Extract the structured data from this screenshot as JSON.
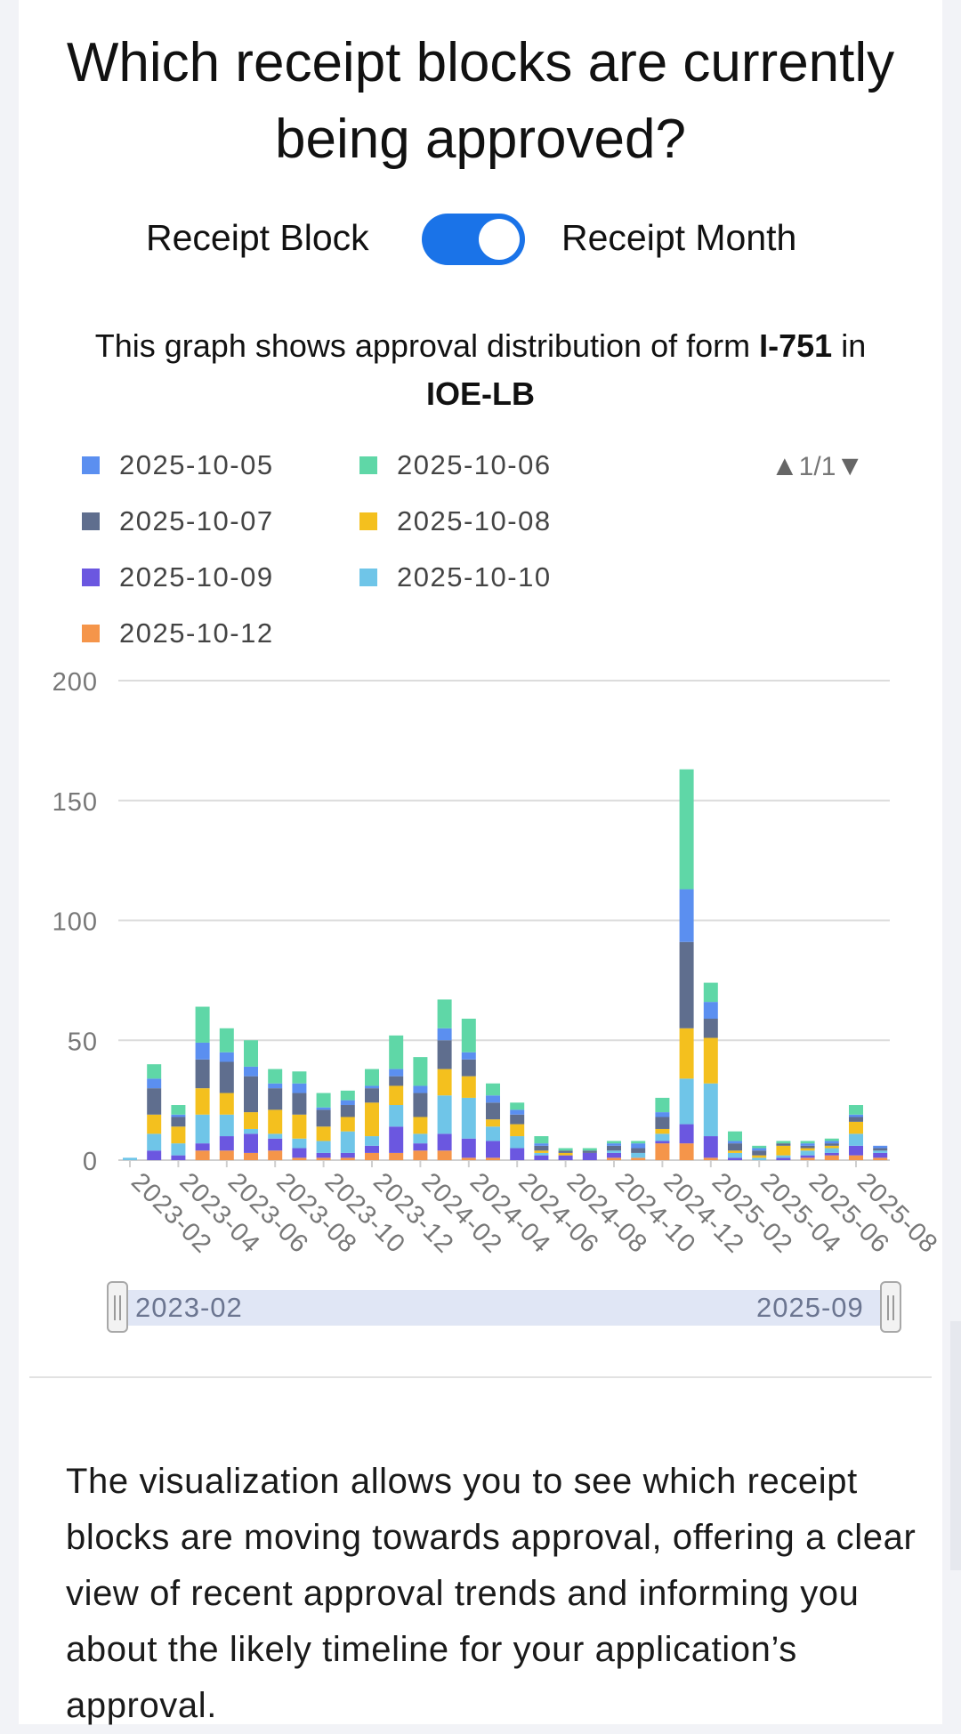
{
  "header": {
    "title": "Which receipt blocks are currently being approved?"
  },
  "toggle": {
    "left_label": "Receipt Block",
    "right_label": "Receipt Month",
    "checked": true,
    "color": "#1a73e8"
  },
  "subtitle": {
    "prefix": "This graph shows approval distribution of form",
    "form": "I-751",
    "mid": "in",
    "office": "IOE-LB"
  },
  "legend": {
    "pager": "1/1",
    "up_icon": "▲",
    "down_icon": "▼"
  },
  "slider": {
    "start_label": "2023-02",
    "end_label": "2025-09"
  },
  "description": {
    "text": "The visualization allows you to see which receipt blocks are moving towards approval, offering a clear view of recent approval trends and informing you about the likely timeline for your application’s approval."
  },
  "chart_data": {
    "type": "bar",
    "stacked": true,
    "legend_placement": "top",
    "grid": true,
    "ylim": [
      0,
      200
    ],
    "yticks": [
      0,
      50,
      100,
      150,
      200
    ],
    "categories": [
      "2023-02",
      "2023-03",
      "2023-04",
      "2023-05",
      "2023-06",
      "2023-07",
      "2023-08",
      "2023-09",
      "2023-10",
      "2023-11",
      "2023-12",
      "2024-01",
      "2024-02",
      "2024-03",
      "2024-04",
      "2024-05",
      "2024-06",
      "2024-07",
      "2024-08",
      "2024-09",
      "2024-10",
      "2024-11",
      "2024-12",
      "2025-01",
      "2025-02",
      "2025-03",
      "2025-04",
      "2025-05",
      "2025-06",
      "2025-07",
      "2025-08",
      "2025-09"
    ],
    "xtick_labels": [
      "2023-02",
      "2023-04",
      "2023-06",
      "2023-08",
      "2023-10",
      "2023-12",
      "2024-02",
      "2024-04",
      "2024-06",
      "2024-08",
      "2024-10",
      "2024-12",
      "2025-02",
      "2025-04",
      "2025-06",
      "2025-08"
    ],
    "series": [
      {
        "name": "2025-10-12",
        "color": "#f5954a",
        "values": [
          0,
          0,
          0,
          4,
          4,
          3,
          4,
          1,
          1,
          1,
          3,
          3,
          4,
          4,
          1,
          1,
          0,
          0,
          0,
          0,
          1,
          1,
          7,
          7,
          1,
          0,
          0,
          0,
          1,
          2,
          2,
          1
        ]
      },
      {
        "name": "2025-10-09",
        "color": "#6b57e0",
        "values": [
          0,
          4,
          2,
          3,
          6,
          8,
          5,
          4,
          2,
          2,
          3,
          11,
          3,
          7,
          8,
          7,
          5,
          2,
          2,
          3,
          2,
          0,
          1,
          8,
          9,
          1,
          0,
          1,
          1,
          1,
          4,
          2
        ]
      },
      {
        "name": "2025-10-10",
        "color": "#6fc5e8",
        "values": [
          1,
          7,
          5,
          12,
          9,
          2,
          2,
          4,
          5,
          9,
          4,
          9,
          4,
          16,
          17,
          6,
          5,
          1,
          0,
          0,
          1,
          2,
          3,
          19,
          22,
          2,
          1,
          1,
          2,
          2,
          5,
          1
        ]
      },
      {
        "name": "2025-10-08",
        "color": "#f4c01e",
        "values": [
          0,
          8,
          7,
          11,
          9,
          7,
          10,
          10,
          6,
          6,
          14,
          8,
          7,
          11,
          9,
          3,
          5,
          1,
          1,
          0,
          0,
          0,
          2,
          21,
          19,
          1,
          1,
          4,
          1,
          1,
          5,
          0
        ]
      },
      {
        "name": "2025-10-07",
        "color": "#5f6e8e",
        "values": [
          0,
          11,
          4,
          12,
          13,
          15,
          9,
          9,
          7,
          5,
          6,
          4,
          10,
          12,
          7,
          7,
          4,
          2,
          1,
          1,
          2,
          2,
          5,
          36,
          8,
          3,
          2,
          1,
          1,
          1,
          2,
          1
        ]
      },
      {
        "name": "2025-10-05",
        "color": "#5b8ff0",
        "values": [
          0,
          4,
          1,
          7,
          4,
          4,
          2,
          4,
          1,
          2,
          1,
          3,
          3,
          5,
          3,
          3,
          2,
          1,
          0,
          0,
          1,
          2,
          2,
          22,
          7,
          1,
          1,
          0,
          1,
          1,
          1,
          1
        ]
      },
      {
        "name": "2025-10-06",
        "color": "#5fd7a7",
        "values": [
          0,
          6,
          4,
          15,
          10,
          11,
          6,
          5,
          6,
          4,
          7,
          14,
          12,
          12,
          14,
          5,
          3,
          3,
          1,
          1,
          1,
          1,
          6,
          50,
          8,
          4,
          1,
          1,
          1,
          1,
          4,
          0
        ]
      }
    ]
  }
}
